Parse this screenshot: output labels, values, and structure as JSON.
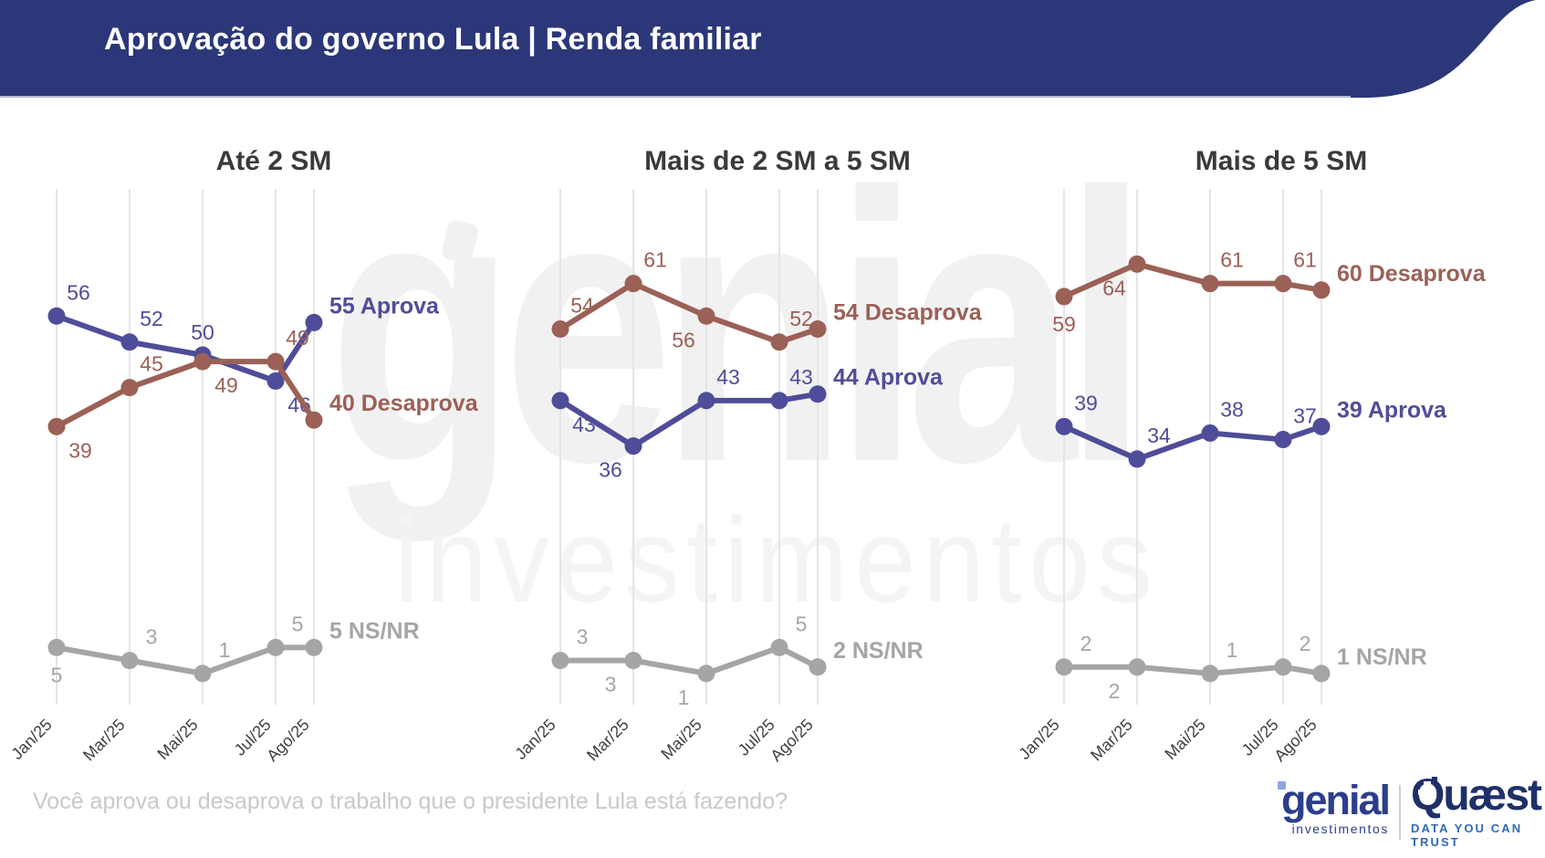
{
  "header": {
    "title": "Aprovação do governo Lula | Renda familiar",
    "bg_color": "#2b3778"
  },
  "question": "Você aprova ou desaprova o trabalho que o presidente Lula está fazendo?",
  "watermark": {
    "line1": "genial",
    "line2": "investimentos"
  },
  "footer": {
    "genial": {
      "name": "genial",
      "sub": "investimentos"
    },
    "quaest": {
      "name": "Quæst",
      "tagline": "DATA YOU CAN TRUST"
    }
  },
  "colors": {
    "aprova": "#4f4d99",
    "desaprova": "#9b6056",
    "nsnr": "#a5a5a5",
    "gridline": "#e5e5e5",
    "chart_title": "#3a3a3a",
    "axis_label": "#3f3f3f"
  },
  "chart_data": [
    {
      "type": "line",
      "title": "Até 2 SM",
      "categories": [
        "Jan/25",
        "Mar/25",
        "Mai/25",
        "Jul/25",
        "Ago/25"
      ],
      "ylim": [
        0,
        70
      ],
      "grid": "vertical-only",
      "legend_position": "end-of-line",
      "series": [
        {
          "name": "Aprova",
          "color_key": "aprova",
          "values": [
            56,
            52,
            50,
            46,
            55
          ],
          "end_label": "55 Aprova"
        },
        {
          "name": "Desaprova",
          "color_key": "desaprova",
          "values": [
            39,
            45,
            49,
            49,
            40
          ],
          "end_label": "40 Desaprova"
        },
        {
          "name": "NS/NR",
          "color_key": "nsnr",
          "values": [
            5,
            3,
            1,
            5,
            5
          ],
          "end_label": "5 NS/NR"
        }
      ]
    },
    {
      "type": "line",
      "title": "Mais de 2 SM a 5 SM",
      "categories": [
        "Jan/25",
        "Mar/25",
        "Mai/25",
        "Jul/25",
        "Ago/25"
      ],
      "ylim": [
        0,
        70
      ],
      "grid": "vertical-only",
      "legend_position": "end-of-line",
      "series": [
        {
          "name": "Aprova",
          "color_key": "aprova",
          "values": [
            43,
            36,
            43,
            43,
            44
          ],
          "end_label": "44 Aprova"
        },
        {
          "name": "Desaprova",
          "color_key": "desaprova",
          "values": [
            54,
            61,
            56,
            52,
            54
          ],
          "end_label": "54 Desaprova"
        },
        {
          "name": "NS/NR",
          "color_key": "nsnr",
          "values": [
            3,
            3,
            1,
            5,
            2
          ],
          "end_label": "2 NS/NR"
        }
      ]
    },
    {
      "type": "line",
      "title": "Mais de 5 SM",
      "categories": [
        "Jan/25",
        "Mar/25",
        "Mai/25",
        "Jul/25",
        "Ago/25"
      ],
      "ylim": [
        0,
        70
      ],
      "grid": "vertical-only",
      "legend_position": "end-of-line",
      "series": [
        {
          "name": "Aprova",
          "color_key": "aprova",
          "values": [
            39,
            34,
            38,
            37,
            39
          ],
          "end_label": "39 Aprova"
        },
        {
          "name": "Desaprova",
          "color_key": "desaprova",
          "values": [
            59,
            64,
            61,
            61,
            60
          ],
          "end_label": "60 Desaprova"
        },
        {
          "name": "NS/NR",
          "color_key": "nsnr",
          "values": [
            2,
            2,
            1,
            2,
            1
          ],
          "end_label": "1 NS/NR"
        }
      ]
    }
  ]
}
